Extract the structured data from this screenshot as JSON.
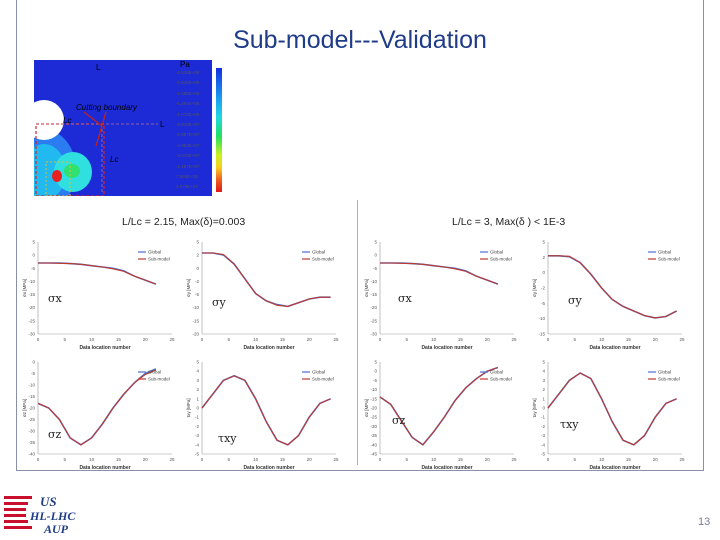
{
  "slide": {
    "title": "Sub-model---Validation",
    "page_number": "13"
  },
  "contour_plot": {
    "unit_label": "Pa",
    "cutting_label": "Cutting boundary",
    "lc_label_1": "Lc",
    "lc_label_2": "Lc",
    "l_label_1": "L",
    "l_label_2": "L",
    "legend_values": [
      "-1.838E+08",
      "-1.646E+08",
      "-1.455E+08",
      "-1.264E+08",
      "-1.072E+08",
      "-8.810E+07",
      "-6.897E+07",
      "-4.983E+07",
      "-3.070E+07",
      "-1.157E+07",
      "7.565E+06",
      "2.670E+07"
    ]
  },
  "captions": {
    "left": "L/Lc = 2.15, Max(δ)=0.003",
    "right": "L/Lc = 3, Max(δ ) < 1E-3"
  },
  "colors": {
    "title": "#1f3c88",
    "global_series": "#4a6fd0",
    "submodel_series": "#c0392b",
    "frame": "#8a8fa8"
  },
  "chart_data": [
    {
      "type": "line",
      "panel": "left",
      "stress": "σx",
      "xlabel": "Data location number",
      "ylabel": "σx [MPa]",
      "xlim": [
        0,
        25
      ],
      "ylim": [
        -30,
        5
      ],
      "x_ticks": [
        "0",
        "5",
        "10",
        "15",
        "20",
        "25"
      ],
      "y_ticks": [
        "5",
        "0",
        "-5",
        "-10",
        "-15",
        "-20",
        "-25",
        "-30"
      ],
      "legend": [
        "Global",
        "Sub-model"
      ],
      "x": [
        0,
        2,
        4,
        6,
        8,
        10,
        12,
        14,
        16,
        18,
        20,
        22
      ],
      "series": [
        {
          "name": "Global",
          "values": [
            -3,
            -3,
            -3,
            -3.2,
            -3.5,
            -4,
            -4.5,
            -5,
            -6,
            -8,
            -9.5,
            -11
          ]
        },
        {
          "name": "Sub-model",
          "values": [
            -3,
            -3,
            -3.1,
            -3.2,
            -3.5,
            -4,
            -4.5,
            -5.2,
            -6.2,
            -8,
            -9.5,
            -11
          ]
        }
      ]
    },
    {
      "type": "line",
      "panel": "left",
      "stress": "σy",
      "xlabel": "Data location number",
      "ylabel": "σy [MPa]",
      "xlim": [
        0,
        25
      ],
      "ylim": [
        -20,
        5
      ],
      "x_ticks": [
        "0",
        "5",
        "10",
        "15",
        "20",
        "25"
      ],
      "y_ticks": [
        "5",
        "2",
        "0",
        "-2",
        "-5",
        "-10",
        "-15",
        "-20"
      ],
      "legend": [
        "Global",
        "Sub-model"
      ],
      "x": [
        0,
        2,
        4,
        6,
        8,
        10,
        12,
        14,
        16,
        18,
        20,
        22,
        24
      ],
      "series": [
        {
          "name": "Global",
          "values": [
            2,
            2,
            1.5,
            -1,
            -5,
            -9,
            -11,
            -12,
            -12.5,
            -11.5,
            -10.5,
            -10,
            -10
          ]
        },
        {
          "name": "Sub-model",
          "values": [
            2,
            2,
            1.6,
            -1,
            -5,
            -9,
            -11,
            -12.2,
            -12.5,
            -11.5,
            -10.5,
            -10,
            -10
          ]
        }
      ]
    },
    {
      "type": "line",
      "panel": "right",
      "stress": "σx",
      "xlabel": "Data location number",
      "ylabel": "σx [MPa]",
      "xlim": [
        0,
        25
      ],
      "ylim": [
        -30,
        5
      ],
      "x_ticks": [
        "0",
        "5",
        "10",
        "15",
        "20",
        "25"
      ],
      "y_ticks": [
        "5",
        "0",
        "-5",
        "-10",
        "-15",
        "-20",
        "-25",
        "-30"
      ],
      "legend": [
        "Global",
        "Sub-model"
      ],
      "x": [
        0,
        2,
        4,
        6,
        8,
        10,
        12,
        14,
        16,
        18,
        20,
        22
      ],
      "series": [
        {
          "name": "Global",
          "values": [
            -3,
            -3,
            -3,
            -3.2,
            -3.5,
            -4,
            -4.5,
            -5,
            -6,
            -8,
            -9.5,
            -11
          ]
        },
        {
          "name": "Sub-model",
          "values": [
            -3,
            -3,
            -3.1,
            -3.2,
            -3.5,
            -4,
            -4.5,
            -5.2,
            -6.2,
            -8,
            -9.5,
            -11
          ]
        }
      ]
    },
    {
      "type": "line",
      "panel": "right",
      "stress": "σy",
      "xlabel": "Data location number",
      "ylabel": "σy [MPa]",
      "xlim": [
        0,
        25
      ],
      "ylim": [
        -15,
        5
      ],
      "x_ticks": [
        "0",
        "5",
        "10",
        "15",
        "20",
        "25"
      ],
      "y_ticks": [
        "5",
        "2",
        "0",
        "-2",
        "-5",
        "-10",
        "-15"
      ],
      "legend": [
        "Global",
        "Sub-model"
      ],
      "x": [
        0,
        2,
        4,
        6,
        8,
        10,
        12,
        14,
        16,
        18,
        20,
        22,
        24
      ],
      "series": [
        {
          "name": "Global",
          "values": [
            2,
            2,
            1.8,
            0.5,
            -2,
            -5,
            -7.5,
            -9,
            -10,
            -11,
            -11.5,
            -11.2,
            -10
          ]
        },
        {
          "name": "Sub-model",
          "values": [
            2,
            2,
            1.9,
            0.5,
            -2,
            -5,
            -7.5,
            -9,
            -10,
            -11,
            -11.5,
            -11.2,
            -10
          ]
        }
      ]
    },
    {
      "type": "line",
      "panel": "left",
      "stress": "σz",
      "xlabel": "Data location number",
      "ylabel": "σz [MPa]",
      "xlim": [
        0,
        25
      ],
      "ylim": [
        -40,
        0
      ],
      "x_ticks": [
        "0",
        "5",
        "10",
        "15",
        "20",
        "25"
      ],
      "y_ticks": [
        "0",
        "-5",
        "-10",
        "-15",
        "-20",
        "-25",
        "-30",
        "-35",
        "-40"
      ],
      "legend": [
        "Global",
        "Sub-model"
      ],
      "x": [
        0,
        2,
        4,
        6,
        8,
        10,
        12,
        14,
        16,
        18,
        20,
        22
      ],
      "series": [
        {
          "name": "Global",
          "values": [
            -18,
            -20,
            -25,
            -33,
            -36,
            -33,
            -27,
            -20,
            -14,
            -9,
            -5,
            -3
          ]
        },
        {
          "name": "Sub-model",
          "values": [
            -18,
            -20,
            -25,
            -33,
            -36,
            -33,
            -27,
            -20,
            -14,
            -9,
            -5.5,
            -3.5
          ]
        }
      ]
    },
    {
      "type": "line",
      "panel": "left",
      "stress": "τxy",
      "xlabel": "Data location number",
      "ylabel": "τxy [MPa]",
      "xlim": [
        0,
        25
      ],
      "ylim": [
        -5,
        5
      ],
      "x_ticks": [
        "0",
        "5",
        "10",
        "15",
        "20",
        "25"
      ],
      "y_ticks": [
        "5",
        "4",
        "3",
        "2",
        "1",
        "0",
        "-1",
        "-2",
        "-3",
        "-4",
        "-5"
      ],
      "legend": [
        "Global",
        "Sub-model"
      ],
      "x": [
        0,
        2,
        4,
        6,
        8,
        10,
        12,
        14,
        16,
        18,
        20,
        22,
        24
      ],
      "series": [
        {
          "name": "Global",
          "values": [
            0,
            1.5,
            3,
            3.5,
            3,
            1,
            -1.5,
            -3.5,
            -4,
            -3,
            -1,
            0.5,
            1
          ]
        },
        {
          "name": "Sub-model",
          "values": [
            0,
            1.5,
            3,
            3.5,
            3,
            1,
            -1.5,
            -3.5,
            -4,
            -3,
            -1,
            0.5,
            1
          ]
        }
      ]
    },
    {
      "type": "line",
      "panel": "right",
      "stress": "σz",
      "xlabel": "Data location number",
      "ylabel": "σz [MPa]",
      "xlim": [
        0,
        25
      ],
      "ylim": [
        -45,
        5
      ],
      "x_ticks": [
        "0",
        "5",
        "10",
        "15",
        "20",
        "25"
      ],
      "y_ticks": [
        "5",
        "0",
        "-5",
        "-10",
        "-15",
        "-20",
        "-25",
        "-30",
        "-35",
        "-40",
        "-45"
      ],
      "legend": [
        "Global",
        "Sub-model"
      ],
      "x": [
        0,
        2,
        4,
        6,
        8,
        10,
        12,
        14,
        16,
        18,
        20,
        22
      ],
      "series": [
        {
          "name": "Global",
          "values": [
            -14,
            -18,
            -27,
            -36,
            -40,
            -33,
            -25,
            -16,
            -9,
            -4,
            0,
            2
          ]
        },
        {
          "name": "Sub-model",
          "values": [
            -14,
            -18,
            -27,
            -36,
            -40,
            -33,
            -25,
            -16,
            -9,
            -4,
            0,
            2
          ]
        }
      ]
    },
    {
      "type": "line",
      "panel": "right",
      "stress": "τxy",
      "xlabel": "Data location number",
      "ylabel": "τxy [MPa]",
      "xlim": [
        0,
        25
      ],
      "ylim": [
        -5,
        5
      ],
      "x_ticks": [
        "0",
        "5",
        "10",
        "15",
        "20",
        "25"
      ],
      "y_ticks": [
        "5",
        "4",
        "3",
        "2",
        "1",
        "0",
        "-1",
        "-2",
        "-3",
        "-4",
        "-5"
      ],
      "legend": [
        "Global",
        "Sub-model"
      ],
      "x": [
        0,
        2,
        4,
        6,
        8,
        10,
        12,
        14,
        16,
        18,
        20,
        22,
        24
      ],
      "series": [
        {
          "name": "Global",
          "values": [
            0,
            1.5,
            3,
            3.8,
            3.2,
            1,
            -1.5,
            -3.5,
            -4,
            -3,
            -1,
            0.5,
            1
          ]
        },
        {
          "name": "Sub-model",
          "values": [
            0,
            1.5,
            3,
            3.8,
            3.2,
            1,
            -1.5,
            -3.5,
            -4,
            -3,
            -1,
            0.5,
            1
          ]
        }
      ]
    }
  ]
}
